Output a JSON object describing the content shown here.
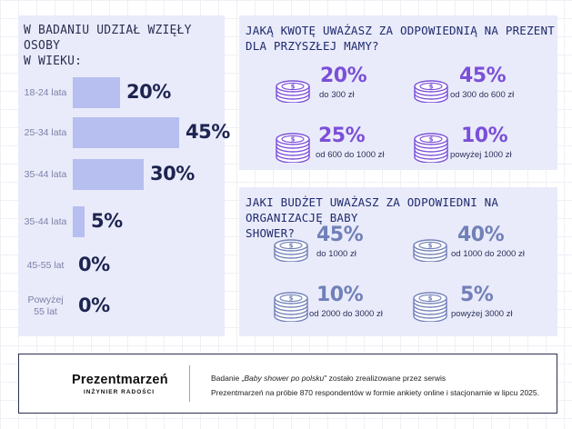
{
  "age": {
    "title_line1": "W BADANIU UDZIAŁ WZIĘŁY OSOBY",
    "title_line2": "W WIEKU:"
  },
  "chart_data": [
    {
      "type": "bar",
      "title": "W BADANIU UDZIAŁ WZIĘŁY OSOBY W WIEKU:",
      "categories": [
        "18-24 lata",
        "25-34 lata",
        "35-44 lata",
        "35-44 lata",
        "45-55 lat",
        "Powyżej 55 lat"
      ],
      "values": [
        20,
        45,
        30,
        5,
        0,
        0
      ],
      "value_labels": [
        "20%",
        "45%",
        "30%",
        "5%",
        "0%",
        "0%"
      ],
      "category_lines": [
        [
          "18-24 lata"
        ],
        [
          "25-34 lata"
        ],
        [
          "35-44 lata"
        ],
        [
          "35-44 lata"
        ],
        [
          "45-55 lat"
        ],
        [
          "Powyżej",
          "55 lat"
        ]
      ],
      "orientation": "horizontal",
      "bar_color": "#b7bff0"
    }
  ],
  "gift": {
    "title_line1": "JAKĄ KWOTĘ UWAŻASZ ZA ODPOWIEDNIĄ NA PREZENT",
    "title_line2": "DLA PRZYSZŁEJ MAMY?",
    "color": "#7b4fd8",
    "items": [
      {
        "pct": "20%",
        "label": "do 300 zł",
        "icon": "coin-stack-icon"
      },
      {
        "pct": "45%",
        "label": "od 300 do 600 zł",
        "icon": "coin-stack-icon"
      },
      {
        "pct": "25%",
        "label": "od 600 do 1000 zł",
        "icon": "coin-stack-icon"
      },
      {
        "pct": "10%",
        "label": "powyżej 1000 zł",
        "icon": "coin-stack-icon"
      }
    ]
  },
  "budget": {
    "title_line1": "JAKI BUDŻET UWAŻASZ ZA ODPOWIEDNI NA ORGANIZACJĘ BABY",
    "title_line2": "SHOWER?",
    "color": "#7180b8",
    "items": [
      {
        "pct": "45%",
        "label": "do 1000 zł",
        "icon": "coin-stack-icon"
      },
      {
        "pct": "40%",
        "label": "od 1000 do 2000 zł",
        "icon": "coin-stack-icon"
      },
      {
        "pct": "10%",
        "label": "od 2000 do 3000 zł",
        "icon": "coin-stack-icon"
      },
      {
        "pct": "5%",
        "label": "powyżej 3000 zł",
        "icon": "coin-stack-icon"
      }
    ]
  },
  "footer": {
    "logo_text": "Prezentmarzeń",
    "logo_sub": "INŻYNIER RADOŚCI",
    "line1_pre": "Badanie „",
    "line1_em": "Baby shower po polsku",
    "line1_post": "\" zostało zrealizowane przez serwis",
    "line2": "Prezentmarzeń na próbie 870 respondentów w formie ankiety online i stacjonarnie w lipcu 2025."
  }
}
